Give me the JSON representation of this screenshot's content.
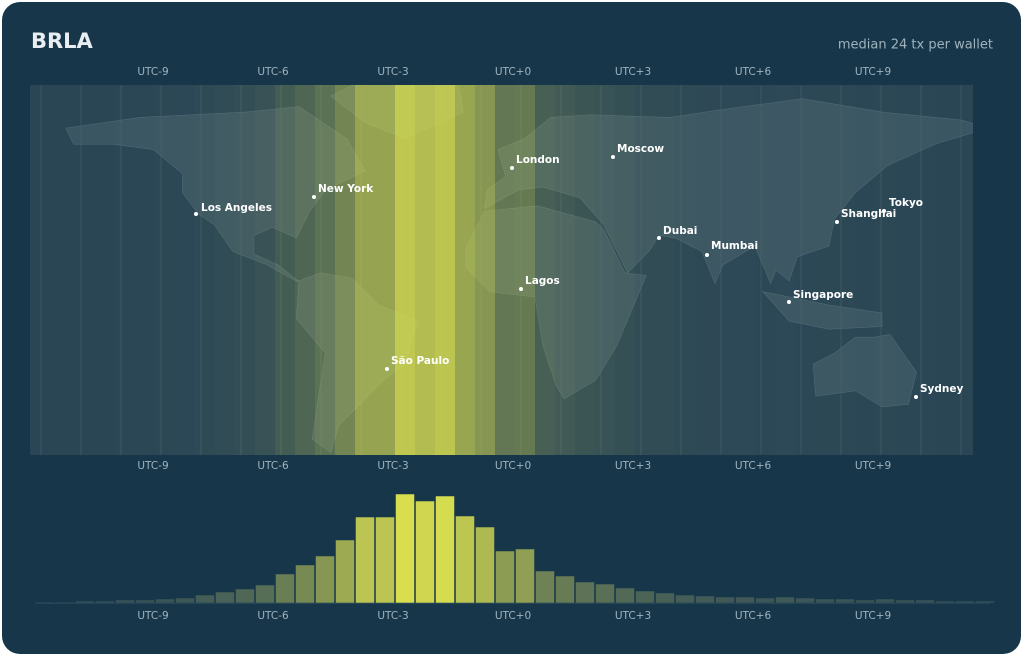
{
  "chart_data": {
    "type": "bar",
    "title": "BRLA",
    "subtitle": "median 24 tx per wallet",
    "tz_labels": [
      "UTC-9",
      "UTC-6",
      "UTC-3",
      "UTC+0",
      "UTC+3",
      "UTC+6",
      "UTC+9"
    ],
    "values": [
      1,
      1,
      2,
      2,
      3,
      3,
      4,
      5,
      8,
      11,
      14,
      18,
      29,
      38,
      47,
      63,
      86,
      86,
      109,
      102,
      107,
      87,
      76,
      52,
      54,
      32,
      27,
      21,
      19,
      15,
      12,
      10,
      8,
      7,
      6,
      6,
      5,
      6,
      5,
      4,
      4,
      3,
      4,
      3,
      3,
      2,
      2,
      2
    ],
    "color_low": "#2f4b58",
    "color_high": "#d9de4f",
    "cities": [
      "Los Angeles",
      "New York",
      "London",
      "Moscow",
      "Dubai",
      "Mumbai",
      "Shanghai",
      "Tokyo",
      "Lagos",
      "Singapore",
      "São Paulo",
      "Sydney"
    ]
  }
}
